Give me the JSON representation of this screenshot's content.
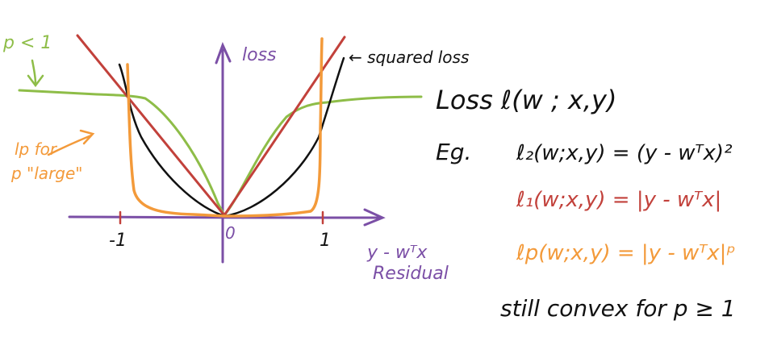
{
  "colors": {
    "axis": "#7b4fa6",
    "black": "#111111",
    "red": "#c2413b",
    "green": "#8ebd48",
    "orange": "#f39a3a"
  },
  "labels": {
    "y_axis": "loss",
    "x_axis_line1": "y - wᵀx",
    "x_axis_line2": "Residual",
    "tick_neg1": "-1",
    "tick_0": "0",
    "tick_pos1": "1",
    "p_less_1": "p < 1",
    "squared_loss": "← squared loss",
    "lp_for_line1": "lp for",
    "lp_for_line2": "p \"large\""
  },
  "equations": {
    "loss": "Loss   ℓ(w ; x,y)",
    "eg": "Eg.",
    "l2": "ℓ₂(w;x,y) = (y - wᵀx)²",
    "l1": "ℓ₁(w;x,y) = |y - wᵀx|",
    "lp": "ℓp(w;x,y) = |y - wᵀx|ᵖ",
    "note": "still convex for p ≥ 1"
  }
}
